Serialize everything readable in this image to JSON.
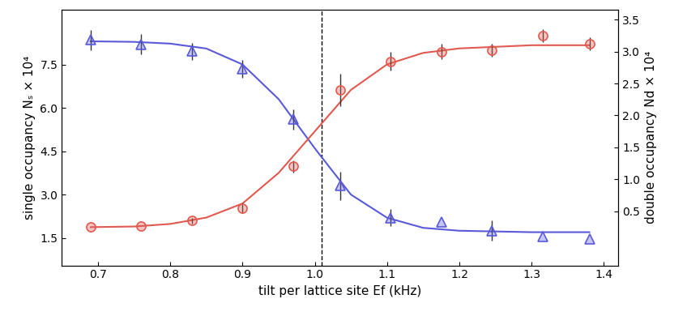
{
  "chart_data": {
    "type": "scatter",
    "xlabel": "tilt per lattice site Ef (kHz)",
    "ylabel": "single occupancy Nₛ × 10⁴",
    "y2label": "double occupancy Nd × 10⁴",
    "xlim": [
      0.65,
      1.42
    ],
    "xticks": [
      0.7,
      0.8,
      0.9,
      1.0,
      1.1,
      1.2,
      1.3,
      1.4
    ],
    "ylim": [
      0.55,
      9.4
    ],
    "yticks": [
      1.5,
      3.0,
      4.5,
      6.0,
      7.5
    ],
    "y2lim": [
      -0.35,
      3.66
    ],
    "y2ticks": [
      0.5,
      1.0,
      1.5,
      2.0,
      2.5,
      3.0,
      3.5
    ],
    "grid": false,
    "reference_lines": [
      {
        "x": 1.01,
        "line_style": "dashed",
        "color": "#000000"
      }
    ],
    "series": [
      {
        "type": "line",
        "axis": "y",
        "color": "#5a5ad8",
        "line_style": "solid",
        "x": [
          0.69,
          0.75,
          0.8,
          0.85,
          0.9,
          0.95,
          1.0,
          1.05,
          1.1,
          1.15,
          1.2,
          1.3,
          1.38
        ],
        "values": [
          8.3,
          8.28,
          8.22,
          8.05,
          7.5,
          6.3,
          4.6,
          3.0,
          2.2,
          1.85,
          1.75,
          1.7,
          1.7
        ]
      },
      {
        "type": "line",
        "axis": "y2",
        "color": "#e05a50",
        "line_style": "solid",
        "x": [
          0.69,
          0.75,
          0.8,
          0.85,
          0.9,
          0.95,
          1.0,
          1.05,
          1.1,
          1.15,
          1.2,
          1.3,
          1.38
        ],
        "values": [
          0.25,
          0.26,
          0.3,
          0.4,
          0.62,
          1.1,
          1.75,
          2.4,
          2.8,
          2.98,
          3.05,
          3.1,
          3.1
        ]
      },
      {
        "type": "scatter",
        "axis": "y",
        "color": "#5a5ad8",
        "marker": "triangle",
        "x": [
          0.69,
          0.76,
          0.83,
          0.9,
          0.97,
          1.035,
          1.105,
          1.175,
          1.245,
          1.315,
          1.38
        ],
        "values": [
          8.35,
          8.2,
          7.95,
          7.35,
          5.6,
          3.3,
          2.2,
          2.05,
          1.75,
          1.55,
          1.45
        ],
        "errors": [
          0.35,
          0.35,
          0.3,
          0.3,
          0.35,
          0.5,
          0.3,
          null,
          0.35,
          null,
          null
        ]
      },
      {
        "type": "scatter",
        "axis": "y2",
        "color": "#e05a50",
        "marker": "circle",
        "x": [
          0.69,
          0.76,
          0.83,
          0.9,
          0.97,
          1.035,
          1.105,
          1.175,
          1.245,
          1.315,
          1.38
        ],
        "values": [
          0.25,
          0.27,
          0.35,
          0.55,
          1.2,
          2.4,
          2.85,
          3.0,
          3.02,
          3.25,
          3.12
        ],
        "errors": [
          null,
          null,
          0.05,
          0.08,
          0.1,
          0.25,
          0.15,
          0.12,
          0.1,
          0.1,
          0.1
        ]
      }
    ]
  }
}
